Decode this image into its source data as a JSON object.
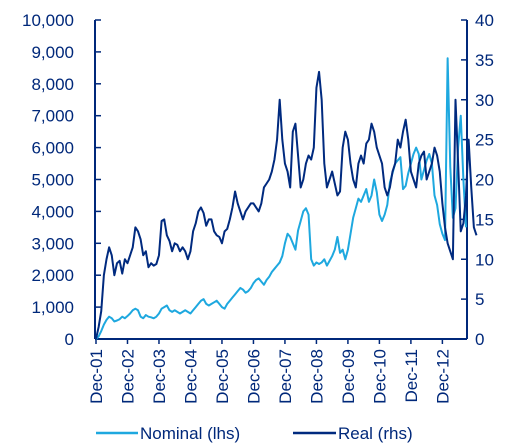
{
  "chart_data": {
    "type": "line",
    "title": "",
    "xlabel": "",
    "ylabel_left": "",
    "ylabel_right": "",
    "x_tick_labels": [
      "Dec-01",
      "Dec-02",
      "Dec-03",
      "Dec-04",
      "Dec-05",
      "Dec-06",
      "Dec-07",
      "Dec-08",
      "Dec-09",
      "Dec-10",
      "Dec-11",
      "Dec-12"
    ],
    "y_left": {
      "lim": [
        0,
        10000
      ],
      "ticks": [
        "0",
        "1,000",
        "2,000",
        "3,000",
        "4,000",
        "5,000",
        "6,000",
        "7,000",
        "8,000",
        "9,000",
        "10,000"
      ]
    },
    "y_right": {
      "lim": [
        0,
        40
      ],
      "ticks": [
        "0",
        "5",
        "10",
        "15",
        "20",
        "25",
        "30",
        "35",
        "40"
      ]
    },
    "grid": false,
    "legend_position": "bottom",
    "colors": {
      "axis": "#00287a",
      "nominal": "#1ea8df",
      "real": "#002a7f",
      "text": "#00287a"
    },
    "series": [
      {
        "name": "Nominal (lhs)",
        "axis": "left",
        "start": "Dec-01",
        "step_months": 1,
        "values": [
          0,
          80,
          250,
          450,
          600,
          700,
          650,
          550,
          580,
          620,
          700,
          650,
          720,
          800,
          900,
          950,
          900,
          700,
          650,
          750,
          700,
          680,
          650,
          700,
          800,
          950,
          1000,
          1050,
          900,
          850,
          900,
          850,
          800,
          850,
          900,
          850,
          800,
          900,
          1000,
          1100,
          1200,
          1250,
          1100,
          1050,
          1100,
          1150,
          1200,
          1100,
          1000,
          950,
          1100,
          1200,
          1300,
          1400,
          1500,
          1600,
          1550,
          1450,
          1500,
          1600,
          1750,
          1850,
          1900,
          1800,
          1700,
          1850,
          1950,
          2100,
          2200,
          2300,
          2400,
          2600,
          3000,
          3300,
          3200,
          3000,
          2800,
          3400,
          3700,
          4000,
          4100,
          3900,
          2500,
          2300,
          2400,
          2350,
          2400,
          2500,
          2300,
          2450,
          2600,
          2800,
          3200,
          2700,
          2800,
          2500,
          2800,
          3300,
          3800,
          4100,
          4400,
          4300,
          4500,
          4700,
          4300,
          4500,
          5000,
          4600,
          3900,
          3700,
          3900,
          4200,
          4900,
          5200,
          5500,
          5600,
          5700,
          4700,
          4800,
          5200,
          5500,
          5800,
          6000,
          5800,
          5000,
          5300,
          5600,
          5800,
          5500,
          4500,
          4200,
          3600,
          3300,
          3100,
          8800,
          5400,
          3800,
          4100,
          6000,
          7000,
          5000,
          3500
        ]
      },
      {
        "name": "Real (rhs)",
        "axis": "right",
        "start": "Dec-01",
        "step_months": 1,
        "values": [
          0,
          1.5,
          3.5,
          8,
          10,
          11.5,
          10.5,
          8,
          9.5,
          9.8,
          8.2,
          10,
          9.5,
          10.5,
          11.5,
          14,
          13.5,
          12.5,
          10.5,
          11,
          9,
          9.5,
          9.2,
          9.4,
          10.5,
          14.8,
          15,
          13,
          12.3,
          11,
          12,
          11.8,
          11,
          11.5,
          11,
          10,
          11,
          13.5,
          14.5,
          16,
          16.5,
          15.8,
          14.2,
          15,
          15,
          13.5,
          13,
          12.8,
          12,
          13.5,
          13.8,
          15,
          16.5,
          18.5,
          17,
          16,
          15,
          16,
          16.5,
          17,
          17,
          16.5,
          16,
          17,
          19,
          19.5,
          20,
          21,
          22.5,
          25,
          30,
          25,
          22,
          21,
          19,
          26,
          27,
          23,
          19,
          20,
          22,
          23,
          22.5,
          24,
          31.5,
          33.5,
          30,
          22,
          19,
          20,
          21,
          19.5,
          18,
          18.5,
          24,
          26,
          25,
          22,
          20,
          19,
          22,
          23,
          22,
          24.5,
          25,
          27,
          26,
          24,
          23,
          22,
          19,
          18,
          19,
          21,
          22,
          25,
          24,
          26,
          27.5,
          25,
          21,
          20,
          19,
          22,
          23,
          23.5,
          20,
          21,
          22,
          24,
          23,
          21,
          17,
          14,
          12,
          11,
          10,
          30,
          22,
          13.5,
          14.5,
          18,
          25,
          19,
          14,
          13
        ]
      }
    ]
  },
  "legend": {
    "items": [
      {
        "label": "Nominal (lhs)",
        "color": "#1ea8df"
      },
      {
        "label": "Real (rhs)",
        "color": "#002a7f"
      }
    ]
  }
}
